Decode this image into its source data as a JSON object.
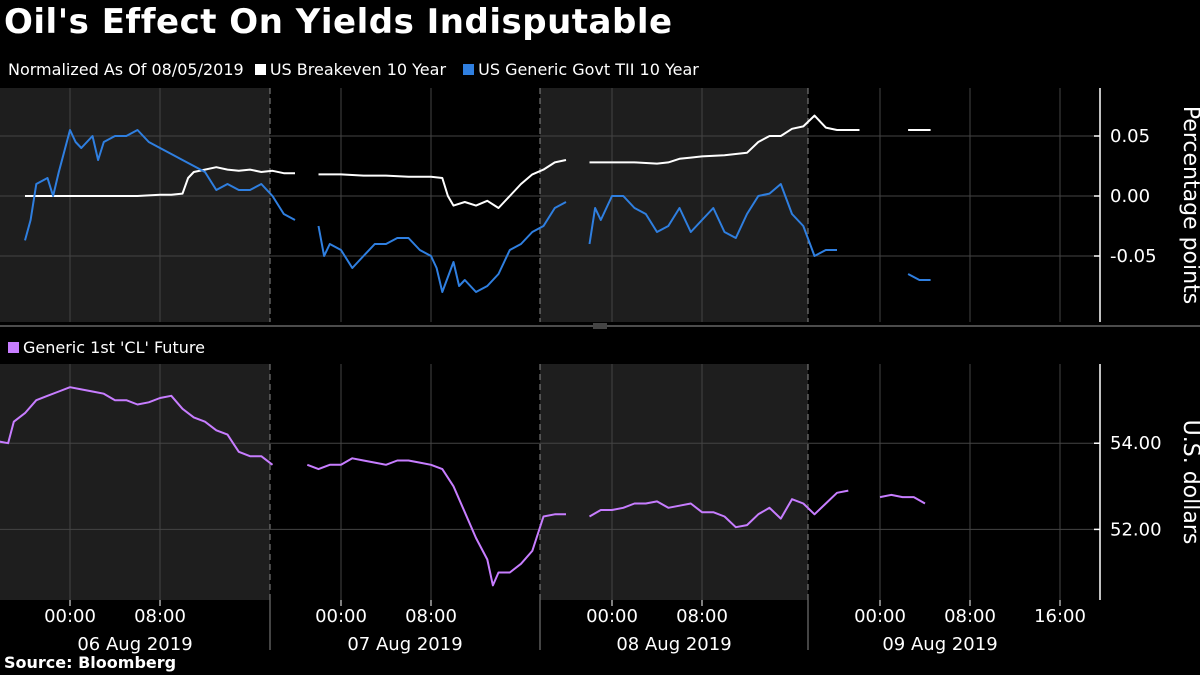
{
  "title": "Oil's Effect On Yields Indisputable",
  "top_legend": {
    "normalized_label": "Normalized As Of 08/05/2019",
    "items": [
      {
        "label": "US Breakeven 10 Year",
        "color": "#ffffff"
      },
      {
        "label": "US Generic Govt TII 10 Year",
        "color": "#2f7fe0"
      }
    ]
  },
  "bottom_legend": {
    "items": [
      {
        "label": "Generic 1st 'CL' Future",
        "color": "#c77dff"
      }
    ]
  },
  "source": "Source: Bloomberg",
  "x_axis": {
    "time_ticks": [
      {
        "day": 0,
        "hour": 0,
        "label": "00:00"
      },
      {
        "day": 0,
        "hour": 8,
        "label": "08:00"
      },
      {
        "day": 1,
        "hour": 0,
        "label": "00:00"
      },
      {
        "day": 1,
        "hour": 8,
        "label": "08:00"
      },
      {
        "day": 2,
        "hour": 0,
        "label": "00:00"
      },
      {
        "day": 2,
        "hour": 8,
        "label": "08:00"
      },
      {
        "day": 3,
        "hour": 0,
        "label": "00:00"
      },
      {
        "day": 3,
        "hour": 8,
        "label": "08:00"
      },
      {
        "day": 3,
        "hour": 16,
        "label": "16:00"
      }
    ],
    "day_labels": [
      "06 Aug 2019",
      "07 Aug 2019",
      "08 Aug 2019",
      "09 Aug 2019"
    ]
  },
  "chart_data": [
    {
      "type": "line",
      "ylabel": "Percentage points",
      "ylim": [
        -0.1,
        0.085
      ],
      "yticks": [
        {
          "value": 0.05,
          "label": "0.05"
        },
        {
          "value": 0.0,
          "label": "0.00"
        },
        {
          "value": -0.05,
          "label": "-0.05"
        }
      ],
      "series": [
        {
          "name": "US Breakeven 10 Year",
          "color": "#ffffff",
          "segments": [
            [
              [
                -4,
                0.0
              ],
              [
                -2,
                0.0
              ],
              [
                0,
                0.0
              ],
              [
                2,
                0.0
              ],
              [
                4,
                0.0
              ],
              [
                6,
                0.0
              ],
              [
                8,
                0.001
              ],
              [
                9,
                0.001
              ],
              [
                10,
                0.002
              ],
              [
                10.5,
                0.015
              ],
              [
                11,
                0.02
              ],
              [
                12,
                0.022
              ],
              [
                13,
                0.024
              ],
              [
                14,
                0.022
              ],
              [
                15,
                0.021
              ],
              [
                16,
                0.022
              ],
              [
                17,
                0.02
              ],
              [
                18,
                0.021
              ],
              [
                19,
                0.019
              ],
              [
                20,
                0.019
              ]
            ],
            [
              [
                -2,
                0.018
              ],
              [
                0,
                0.018
              ],
              [
                2,
                0.017
              ],
              [
                4,
                0.017
              ],
              [
                6,
                0.016
              ],
              [
                8,
                0.016
              ],
              [
                9,
                0.015
              ],
              [
                9.5,
                0.0
              ],
              [
                10,
                -0.008
              ],
              [
                11,
                -0.005
              ],
              [
                12,
                -0.008
              ],
              [
                13,
                -0.004
              ],
              [
                14,
                -0.01
              ],
              [
                15,
                0.0
              ],
              [
                16,
                0.01
              ],
              [
                17,
                0.018
              ],
              [
                18,
                0.022
              ],
              [
                19,
                0.028
              ],
              [
                20,
                0.03
              ]
            ],
            [
              [
                -2,
                0.028
              ],
              [
                0,
                0.028
              ],
              [
                2,
                0.028
              ],
              [
                4,
                0.027
              ],
              [
                5,
                0.028
              ],
              [
                6,
                0.031
              ],
              [
                7,
                0.032
              ],
              [
                8,
                0.033
              ],
              [
                10,
                0.034
              ],
              [
                12,
                0.036
              ],
              [
                13,
                0.045
              ],
              [
                14,
                0.05
              ],
              [
                15,
                0.05
              ],
              [
                16,
                0.056
              ],
              [
                17,
                0.058
              ],
              [
                18,
                0.067
              ],
              [
                19,
                0.057
              ],
              [
                20,
                0.055
              ],
              [
                22,
                0.055
              ]
            ],
            [
              [
                2.5,
                0.055
              ],
              [
                3.5,
                0.055
              ],
              [
                4.5,
                0.055
              ]
            ]
          ]
        },
        {
          "name": "US Generic Govt TII 10 Year",
          "color": "#2f7fe0",
          "segments": [
            [
              [
                -4,
                -0.037
              ],
              [
                -3.5,
                -0.02
              ],
              [
                -3,
                0.01
              ],
              [
                -2,
                0.015
              ],
              [
                -1.5,
                0.0
              ],
              [
                -1,
                0.02
              ],
              [
                0,
                0.055
              ],
              [
                0.5,
                0.045
              ],
              [
                1,
                0.04
              ],
              [
                2,
                0.05
              ],
              [
                2.5,
                0.03
              ],
              [
                3,
                0.045
              ],
              [
                4,
                0.05
              ],
              [
                5,
                0.05
              ],
              [
                6,
                0.055
              ],
              [
                7,
                0.045
              ],
              [
                8,
                0.04
              ],
              [
                9,
                0.035
              ],
              [
                10,
                0.03
              ],
              [
                11,
                0.025
              ],
              [
                12,
                0.02
              ],
              [
                13,
                0.005
              ],
              [
                14,
                0.01
              ],
              [
                15,
                0.005
              ],
              [
                16,
                0.005
              ],
              [
                17,
                0.01
              ],
              [
                18,
                0.0
              ],
              [
                19,
                -0.015
              ],
              [
                20,
                -0.02
              ]
            ],
            [
              [
                -2,
                -0.025
              ],
              [
                -1.5,
                -0.05
              ],
              [
                -1,
                -0.04
              ],
              [
                0,
                -0.045
              ],
              [
                1,
                -0.06
              ],
              [
                2,
                -0.05
              ],
              [
                3,
                -0.04
              ],
              [
                4,
                -0.04
              ],
              [
                5,
                -0.035
              ],
              [
                6,
                -0.035
              ],
              [
                7,
                -0.045
              ],
              [
                8,
                -0.05
              ],
              [
                8.5,
                -0.06
              ],
              [
                9,
                -0.08
              ],
              [
                10,
                -0.055
              ],
              [
                10.5,
                -0.075
              ],
              [
                11,
                -0.07
              ],
              [
                12,
                -0.08
              ],
              [
                13,
                -0.075
              ],
              [
                14,
                -0.065
              ],
              [
                15,
                -0.045
              ],
              [
                16,
                -0.04
              ],
              [
                17,
                -0.03
              ],
              [
                18,
                -0.025
              ],
              [
                19,
                -0.01
              ],
              [
                20,
                -0.005
              ]
            ],
            [
              [
                -2,
                -0.04
              ],
              [
                -1.5,
                -0.01
              ],
              [
                -1,
                -0.02
              ],
              [
                0,
                0.0
              ],
              [
                1,
                0.0
              ],
              [
                2,
                -0.01
              ],
              [
                3,
                -0.015
              ],
              [
                4,
                -0.03
              ],
              [
                5,
                -0.025
              ],
              [
                6,
                -0.01
              ],
              [
                7,
                -0.03
              ],
              [
                8,
                -0.02
              ],
              [
                9,
                -0.01
              ],
              [
                10,
                -0.03
              ],
              [
                11,
                -0.035
              ],
              [
                12,
                -0.015
              ],
              [
                13,
                0.0
              ],
              [
                14,
                0.002
              ],
              [
                15,
                0.01
              ],
              [
                16,
                -0.015
              ],
              [
                17,
                -0.025
              ],
              [
                18,
                -0.05
              ],
              [
                19,
                -0.045
              ],
              [
                20,
                -0.045
              ]
            ],
            [
              [
                2.5,
                -0.065
              ],
              [
                3.5,
                -0.07
              ],
              [
                4.5,
                -0.07
              ]
            ]
          ]
        }
      ]
    },
    {
      "type": "line",
      "ylabel": "U.S. dollars",
      "ylim": [
        50.5,
        55.7
      ],
      "yticks": [
        {
          "value": 54.0,
          "label": "54.00"
        },
        {
          "value": 52.0,
          "label": "52.00"
        }
      ],
      "series": [
        {
          "name": "Generic 1st 'CL' Future",
          "color": "#c77dff",
          "segments": [
            [
              [
                -8,
                54.7
              ],
              [
                -7.5,
                54.0
              ],
              [
                -6.5,
                54.05
              ],
              [
                -5.5,
                54.0
              ],
              [
                -5,
                54.5
              ],
              [
                -4,
                54.7
              ],
              [
                -3,
                55.0
              ],
              [
                -2,
                55.1
              ],
              [
                -1,
                55.2
              ],
              [
                0,
                55.3
              ],
              [
                1,
                55.25
              ],
              [
                2,
                55.2
              ],
              [
                3,
                55.15
              ],
              [
                4,
                55.0
              ],
              [
                5,
                55.0
              ],
              [
                6,
                54.9
              ],
              [
                7,
                54.95
              ],
              [
                8,
                55.05
              ],
              [
                9,
                55.1
              ],
              [
                10,
                54.8
              ],
              [
                11,
                54.6
              ],
              [
                12,
                54.5
              ],
              [
                13,
                54.3
              ],
              [
                14,
                54.2
              ],
              [
                14.5,
                54.0
              ],
              [
                15,
                53.8
              ],
              [
                16,
                53.7
              ],
              [
                17,
                53.7
              ],
              [
                18,
                53.5
              ]
            ],
            [
              [
                -3,
                53.5
              ],
              [
                -2,
                53.4
              ],
              [
                -1,
                53.5
              ],
              [
                0,
                53.5
              ],
              [
                1,
                53.65
              ],
              [
                2,
                53.6
              ],
              [
                3,
                53.55
              ],
              [
                4,
                53.5
              ],
              [
                5,
                53.6
              ],
              [
                6,
                53.6
              ],
              [
                7,
                53.55
              ],
              [
                8,
                53.5
              ],
              [
                9,
                53.4
              ],
              [
                10,
                53.0
              ],
              [
                11,
                52.4
              ],
              [
                12,
                51.8
              ],
              [
                13,
                51.3
              ],
              [
                13.5,
                50.7
              ],
              [
                14,
                51.0
              ],
              [
                15,
                51.0
              ],
              [
                16,
                51.2
              ],
              [
                17,
                51.5
              ],
              [
                18,
                52.3
              ],
              [
                19,
                52.35
              ],
              [
                20,
                52.35
              ]
            ],
            [
              [
                -2,
                52.3
              ],
              [
                -1,
                52.45
              ],
              [
                0,
                52.45
              ],
              [
                1,
                52.5
              ],
              [
                2,
                52.6
              ],
              [
                3,
                52.6
              ],
              [
                4,
                52.65
              ],
              [
                5,
                52.5
              ],
              [
                6,
                52.55
              ],
              [
                7,
                52.6
              ],
              [
                8,
                52.4
              ],
              [
                9,
                52.4
              ],
              [
                10,
                52.3
              ],
              [
                11,
                52.05
              ],
              [
                12,
                52.1
              ],
              [
                13,
                52.35
              ],
              [
                14,
                52.5
              ],
              [
                15,
                52.25
              ],
              [
                16,
                52.7
              ],
              [
                17,
                52.6
              ],
              [
                18,
                52.35
              ],
              [
                19,
                52.6
              ],
              [
                20,
                52.85
              ],
              [
                21,
                52.9
              ]
            ],
            [
              [
                0,
                52.75
              ],
              [
                1,
                52.8
              ],
              [
                2,
                52.75
              ],
              [
                3,
                52.75
              ],
              [
                4,
                52.6
              ]
            ]
          ]
        }
      ]
    }
  ],
  "segment_days": [
    0,
    1,
    2,
    3
  ]
}
